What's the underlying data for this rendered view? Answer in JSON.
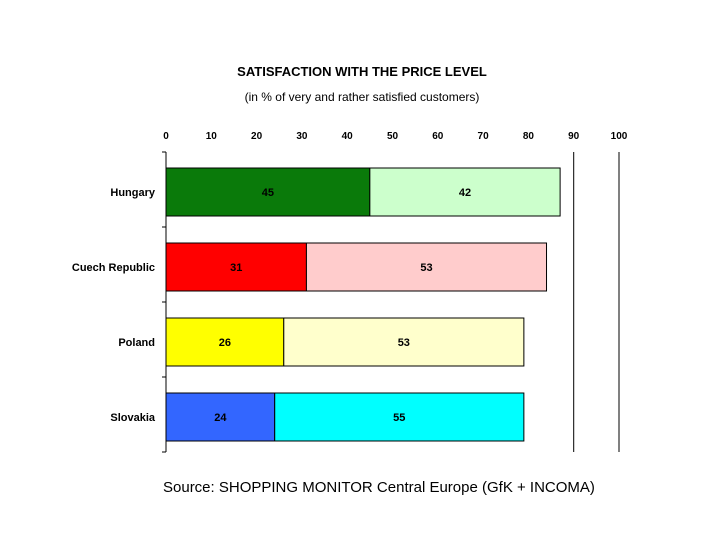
{
  "chart_data": {
    "type": "bar",
    "orientation": "horizontal",
    "stacked": true,
    "title": "SATISFACTION WITH THE PRICE LEVEL",
    "subtitle": "(in % of very and rather satisfied customers)",
    "categories": [
      "Hungary",
      "Cuech Republic",
      "Poland",
      "Slovakia"
    ],
    "series": [
      {
        "values": [
          45,
          31,
          26,
          24
        ]
      },
      {
        "values": [
          42,
          53,
          53,
          55
        ]
      }
    ],
    "colors": [
      [
        "#0a7a0a",
        "#ff0000",
        "#ffff00",
        "#3366ff"
      ],
      [
        "#ccffcc",
        "#ffcccc",
        "#ffffcc",
        "#00ffff"
      ]
    ],
    "xlim": [
      0,
      100
    ],
    "xticks": [
      0,
      10,
      20,
      30,
      40,
      50,
      60,
      70,
      80,
      90,
      100
    ],
    "xgrid_at": [
      90,
      100
    ],
    "tick_labels_position": "top",
    "legend": "none"
  },
  "source": "Source: SHOPPING MONITOR Central Europe (GfK + INCOMA)"
}
